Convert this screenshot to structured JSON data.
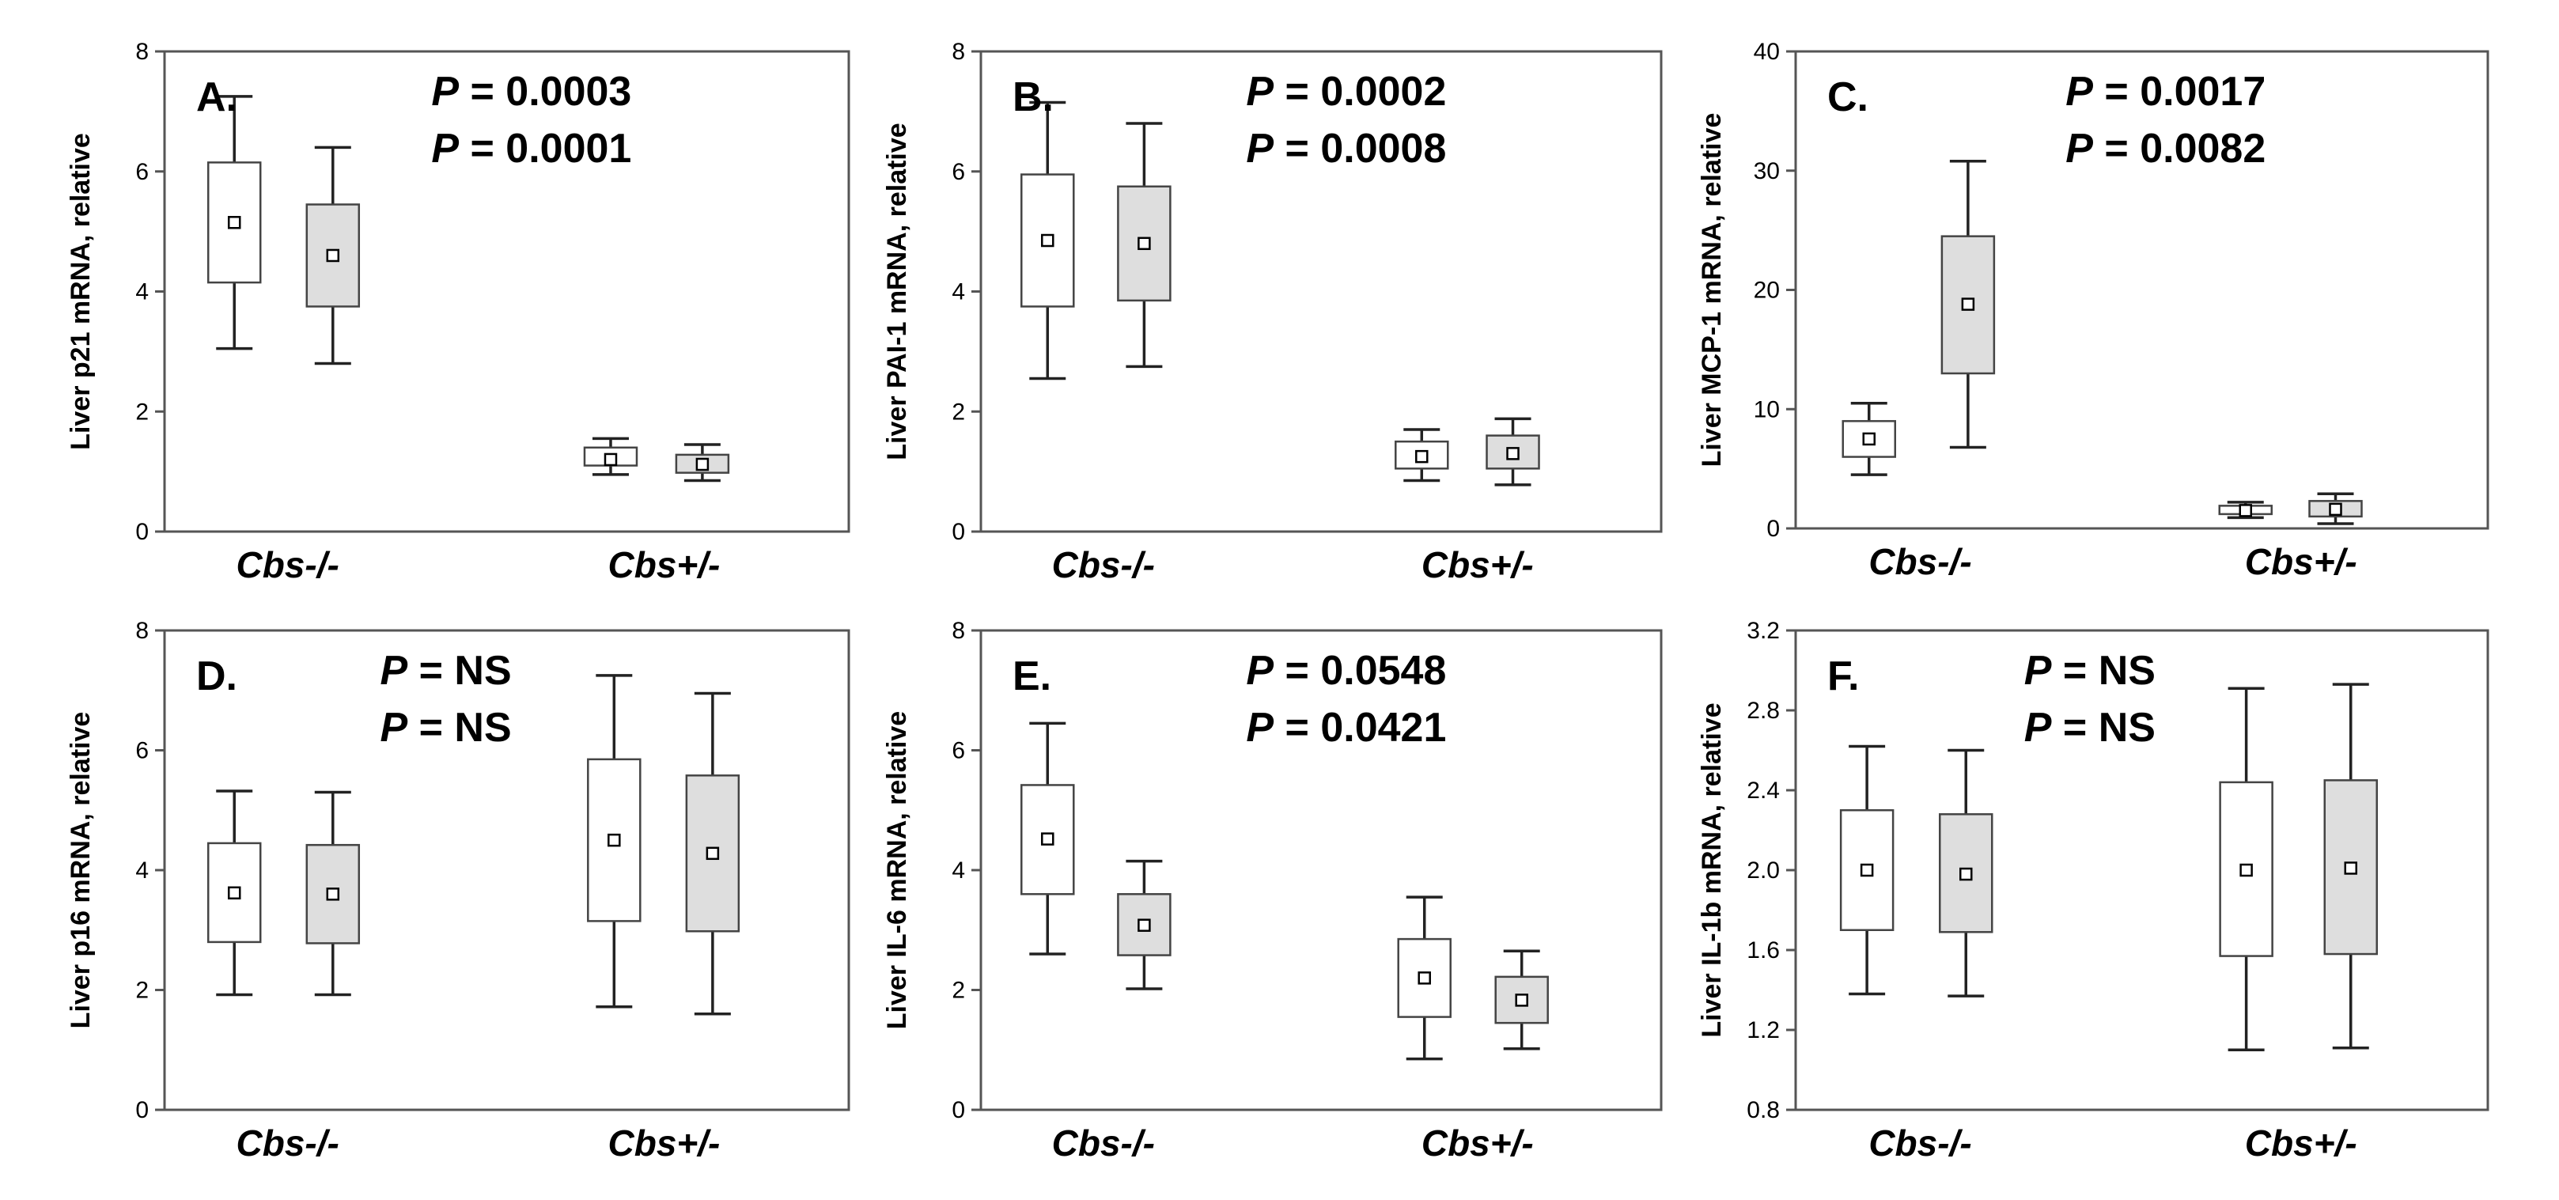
{
  "colors": {
    "control_fill": "#ffffff",
    "treated_fill": "#dedede",
    "frame": "#555555"
  },
  "chart_data": [
    {
      "type": "box",
      "panel_label": "A.",
      "ylabel": "Liver p21 mRNA, relative",
      "ylim": [
        0,
        8
      ],
      "yticks": [
        "0",
        "2",
        "4",
        "6",
        "8"
      ],
      "categories": [
        "Cbs-/-",
        "Cbs+/-"
      ],
      "pvalues": [
        {
          "p": "P",
          "text": " = 0.0003"
        },
        {
          "p": "P",
          "text": " = 0.0001"
        }
      ],
      "series": [
        {
          "name": "control",
          "boxes": [
            {
              "category": "Cbs-/-",
              "whisker_low": 3.05,
              "q1": 4.15,
              "mean": 5.15,
              "q3": 6.15,
              "whisker_high": 7.25
            },
            {
              "category": "Cbs+/-",
              "whisker_low": 0.95,
              "q1": 1.1,
              "mean": 1.2,
              "q3": 1.4,
              "whisker_high": 1.55
            }
          ]
        },
        {
          "name": "treated",
          "boxes": [
            {
              "category": "Cbs-/-",
              "whisker_low": 2.8,
              "q1": 3.75,
              "mean": 4.6,
              "q3": 5.45,
              "whisker_high": 6.4
            },
            {
              "category": "Cbs+/-",
              "whisker_low": 0.85,
              "q1": 0.98,
              "mean": 1.12,
              "q3": 1.28,
              "whisker_high": 1.45
            }
          ]
        }
      ]
    },
    {
      "type": "box",
      "panel_label": "B.",
      "ylabel": "Liver PAI-1 mRNA, relative",
      "ylim": [
        0,
        8
      ],
      "yticks": [
        "0",
        "2",
        "4",
        "6",
        "8"
      ],
      "categories": [
        "Cbs-/-",
        "Cbs+/-"
      ],
      "pvalues": [
        {
          "p": "P",
          "text": " = 0.0002"
        },
        {
          "p": "P",
          "text": " = 0.0008"
        }
      ],
      "series": [
        {
          "name": "control",
          "boxes": [
            {
              "category": "Cbs-/-",
              "whisker_low": 2.55,
              "q1": 3.75,
              "mean": 4.85,
              "q3": 5.95,
              "whisker_high": 7.15
            },
            {
              "category": "Cbs+/-",
              "whisker_low": 0.85,
              "q1": 1.05,
              "mean": 1.25,
              "q3": 1.5,
              "whisker_high": 1.7
            }
          ]
        },
        {
          "name": "treated",
          "boxes": [
            {
              "category": "Cbs-/-",
              "whisker_low": 2.75,
              "q1": 3.85,
              "mean": 4.8,
              "q3": 5.75,
              "whisker_high": 6.8
            },
            {
              "category": "Cbs+/-",
              "whisker_low": 0.78,
              "q1": 1.05,
              "mean": 1.3,
              "q3": 1.6,
              "whisker_high": 1.88
            }
          ]
        }
      ]
    },
    {
      "type": "box",
      "panel_label": "C.",
      "ylabel": "Liver MCP-1 mRNA, relative",
      "ylim": [
        0,
        40
      ],
      "yticks": [
        "0",
        "10",
        "20",
        "30",
        "40"
      ],
      "categories": [
        "Cbs-/-",
        "Cbs+/-"
      ],
      "pvalues": [
        {
          "p": "P",
          "text": " = 0.0017"
        },
        {
          "p": "P",
          "text": " = 0.0082"
        }
      ],
      "series": [
        {
          "name": "control",
          "boxes": [
            {
              "category": "Cbs-/-",
              "whisker_low": 4.5,
              "q1": 6.0,
              "mean": 7.5,
              "q3": 9.0,
              "whisker_high": 10.5
            },
            {
              "category": "Cbs+/-",
              "whisker_low": 0.9,
              "q1": 1.2,
              "mean": 1.5,
              "q3": 1.9,
              "whisker_high": 2.2
            }
          ]
        },
        {
          "name": "treated",
          "boxes": [
            {
              "category": "Cbs-/-",
              "whisker_low": 6.8,
              "q1": 13.0,
              "mean": 18.8,
              "q3": 24.5,
              "whisker_high": 30.8
            },
            {
              "category": "Cbs+/-",
              "whisker_low": 0.4,
              "q1": 1.0,
              "mean": 1.6,
              "q3": 2.3,
              "whisker_high": 2.9
            }
          ]
        }
      ]
    },
    {
      "type": "box",
      "panel_label": "D.",
      "ylabel": "Liver p16 mRNA, relative",
      "ylim": [
        0,
        8
      ],
      "yticks": [
        "0",
        "2",
        "4",
        "6",
        "8"
      ],
      "categories": [
        "Cbs-/-",
        "Cbs+/-"
      ],
      "pvalues": [
        {
          "p": "P",
          "text": " = NS"
        },
        {
          "p": "P",
          "text": " = NS"
        }
      ],
      "series": [
        {
          "name": "control",
          "boxes": [
            {
              "category": "Cbs-/-",
              "whisker_low": 1.92,
              "q1": 2.8,
              "mean": 3.62,
              "q3": 4.45,
              "whisker_high": 5.32
            },
            {
              "category": "Cbs+/-",
              "whisker_low": 1.72,
              "q1": 3.15,
              "mean": 4.5,
              "q3": 5.85,
              "whisker_high": 7.25
            }
          ]
        },
        {
          "name": "treated",
          "boxes": [
            {
              "category": "Cbs-/-",
              "whisker_low": 1.92,
              "q1": 2.78,
              "mean": 3.6,
              "q3": 4.42,
              "whisker_high": 5.3
            },
            {
              "category": "Cbs+/-",
              "whisker_low": 1.6,
              "q1": 2.98,
              "mean": 4.28,
              "q3": 5.58,
              "whisker_high": 6.95
            }
          ]
        }
      ]
    },
    {
      "type": "box",
      "panel_label": "E.",
      "ylabel": "Liver IL-6 mRNA, relative",
      "ylim": [
        0,
        8
      ],
      "yticks": [
        "0",
        "2",
        "4",
        "6",
        "8"
      ],
      "categories": [
        "Cbs-/-",
        "Cbs+/-"
      ],
      "pvalues": [
        {
          "p": "P",
          "text": " = 0.0548"
        },
        {
          "p": "P",
          "text": " = 0.0421"
        }
      ],
      "series": [
        {
          "name": "control",
          "boxes": [
            {
              "category": "Cbs-/-",
              "whisker_low": 2.6,
              "q1": 3.6,
              "mean": 4.52,
              "q3": 5.42,
              "whisker_high": 6.45
            },
            {
              "category": "Cbs+/-",
              "whisker_low": 0.85,
              "q1": 1.55,
              "mean": 2.2,
              "q3": 2.85,
              "whisker_high": 3.55
            }
          ]
        },
        {
          "name": "treated",
          "boxes": [
            {
              "category": "Cbs-/-",
              "whisker_low": 2.02,
              "q1": 2.58,
              "mean": 3.08,
              "q3": 3.6,
              "whisker_high": 4.15
            },
            {
              "category": "Cbs+/-",
              "whisker_low": 1.02,
              "q1": 1.45,
              "mean": 1.83,
              "q3": 2.22,
              "whisker_high": 2.65
            }
          ]
        }
      ]
    },
    {
      "type": "box",
      "panel_label": "F.",
      "ylabel": "Liver IL-1b mRNA, relative",
      "ylim": [
        0.8,
        3.2
      ],
      "yticks": [
        "0.8",
        "1.2",
        "1.6",
        "2.0",
        "2.4",
        "2.8",
        "3.2"
      ],
      "categories": [
        "Cbs-/-",
        "Cbs+/-"
      ],
      "pvalues": [
        {
          "p": "P",
          "text": " = NS"
        },
        {
          "p": "P",
          "text": " = NS"
        }
      ],
      "series": [
        {
          "name": "control",
          "boxes": [
            {
              "category": "Cbs-/-",
              "whisker_low": 1.38,
              "q1": 1.7,
              "mean": 2.0,
              "q3": 2.3,
              "whisker_high": 2.62
            },
            {
              "category": "Cbs+/-",
              "whisker_low": 1.1,
              "q1": 1.57,
              "mean": 2.0,
              "q3": 2.44,
              "whisker_high": 2.91
            }
          ]
        },
        {
          "name": "treated",
          "boxes": [
            {
              "category": "Cbs-/-",
              "whisker_low": 1.37,
              "q1": 1.69,
              "mean": 1.98,
              "q3": 2.28,
              "whisker_high": 2.6
            },
            {
              "category": "Cbs+/-",
              "whisker_low": 1.11,
              "q1": 1.58,
              "mean": 2.01,
              "q3": 2.45,
              "whisker_high": 2.93
            }
          ]
        }
      ]
    }
  ]
}
